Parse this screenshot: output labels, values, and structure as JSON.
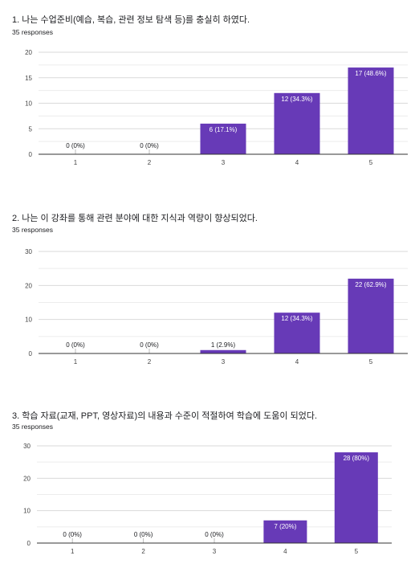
{
  "chart_data": [
    {
      "type": "bar",
      "title": "1. 나는 수업준비(예습, 복습, 관련 정보 탐색 등)를 충실히 하였다.",
      "subtitle": "35 responses",
      "categories": [
        "1",
        "2",
        "3",
        "4",
        "5"
      ],
      "values": [
        0,
        0,
        6,
        12,
        17
      ],
      "value_labels": [
        "0 (0%)",
        "0 (0%)",
        "6 (17.1%)",
        "12 (34.3%)",
        "17 (48.6%)"
      ],
      "yticks": [
        "0",
        "5",
        "10",
        "15",
        "20"
      ],
      "ylim": [
        0,
        20
      ],
      "grid": true,
      "bar_color": "#673ab7"
    },
    {
      "type": "bar",
      "title": "2. 나는 이 강좌를 통해 관련 분야에 대한 지식과 역량이 향상되었다.",
      "subtitle": "35 responses",
      "categories": [
        "1",
        "2",
        "3",
        "4",
        "5"
      ],
      "values": [
        0,
        0,
        1,
        12,
        22
      ],
      "value_labels": [
        "0 (0%)",
        "0 (0%)",
        "1 (2.9%)",
        "12 (34.3%)",
        "22 (62.9%)"
      ],
      "yticks": [
        "0",
        "10",
        "20",
        "30"
      ],
      "ylim": [
        0,
        30
      ],
      "grid": true,
      "bar_color": "#673ab7"
    },
    {
      "type": "bar",
      "title": "3. 학습 자료(교재, PPT, 영상자료)의 내용과 수준이 적절하여 학습에 도움이 되었다.",
      "subtitle": "35 responses",
      "categories": [
        "1",
        "2",
        "3",
        "4",
        "5"
      ],
      "values": [
        0,
        0,
        0,
        7,
        28
      ],
      "value_labels": [
        "0 (0%)",
        "0 (0%)",
        "0 (0%)",
        "7 (20%)",
        "28 (80%)"
      ],
      "yticks": [
        "0",
        "10",
        "20",
        "30"
      ],
      "ylim": [
        0,
        30
      ],
      "grid": true,
      "bar_color": "#673ab7"
    }
  ]
}
